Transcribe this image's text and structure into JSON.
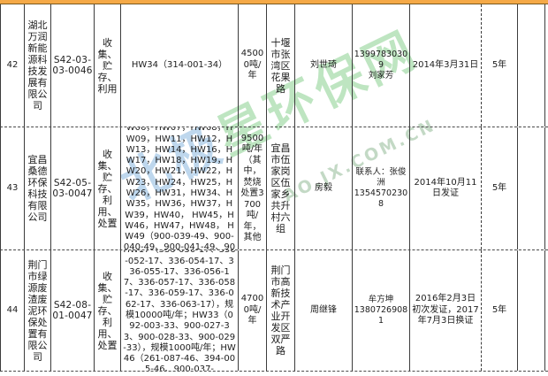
{
  "accent_color": "#F5A947",
  "watermark": {
    "cn_blue": "北极",
    "cn_green": "星环保网",
    "latin": "AO.JX.COM.CN"
  },
  "table": {
    "rows": [
      {
        "no": "42",
        "company": "湖北万润新能源科技发展有限公司",
        "permit_no": "S42-03-03-0046",
        "operation": "收集、贮存、利用",
        "hw_codes": "HW34（314-001-34）",
        "capacity": "45000吨/年",
        "address": "十堰市张湾区花果路",
        "contact": "刘世琦",
        "phone": "13997830309\n刘家芳",
        "issue_date": "2014年3月31日",
        "validity": "5年",
        "extra": ""
      },
      {
        "no": "43",
        "company": "宜昌桑德环保科技有限公司",
        "permit_no": "S42-05-03-0047",
        "operation": "收集、贮存、利用、处置",
        "hw_codes": "HW01，HW02，HW03，HW06，HW07，HW08，HW09，HW11，HW12，HW13，HW14，HW16，HW17，HW18，HW19，HW20，HW21，HW22，HW23，HW24，HW25，HW26，HW31，HW34、HW35，HW36，HW37，HW39，HW40， HW45，HW46，HW47，HW48， HW49（900-039-49、900-040-49、900-041-49、900-042-49、900-",
        "capacity": "9500吨/年（其中，焚烧处置3700吨/年，其他",
        "address": "宜昌市伍家岗区伍家乡共升村六组",
        "contact": "房毅",
        "phone": "联系人：张俊洲\n13545702308",
        "issue_date": "2014年10月11日发证",
        "validity": "5年",
        "extra": ""
      },
      {
        "no": "44",
        "company": "荆门市绿源废渣废泥环保处置有限公司",
        "permit_no": "S42-08-01-0047",
        "operation": "收集、贮存、利用、处置",
        "hw_codes": "HW17（336-050-17、336-052-17、336-054-17、336-055-17、336-056-17、336-057-17、336-058-17、336-059-17、336-062-17、336-063-17），规模10000吨/年；HW33（092-003-33、900-027-33、900-028-33、900-029-33），规模1000吨/年；HW46（261-087-46、394-005-46、900-037-",
        "capacity": "47000吨/年",
        "address": "荆门市高新技术产业开发区双严路",
        "contact": "周继锋",
        "phone": "牟方坤\n13807269081",
        "issue_date": "2016年2月3日初次发证，2017年7月3日换证",
        "validity": "5年",
        "extra": ""
      }
    ]
  }
}
